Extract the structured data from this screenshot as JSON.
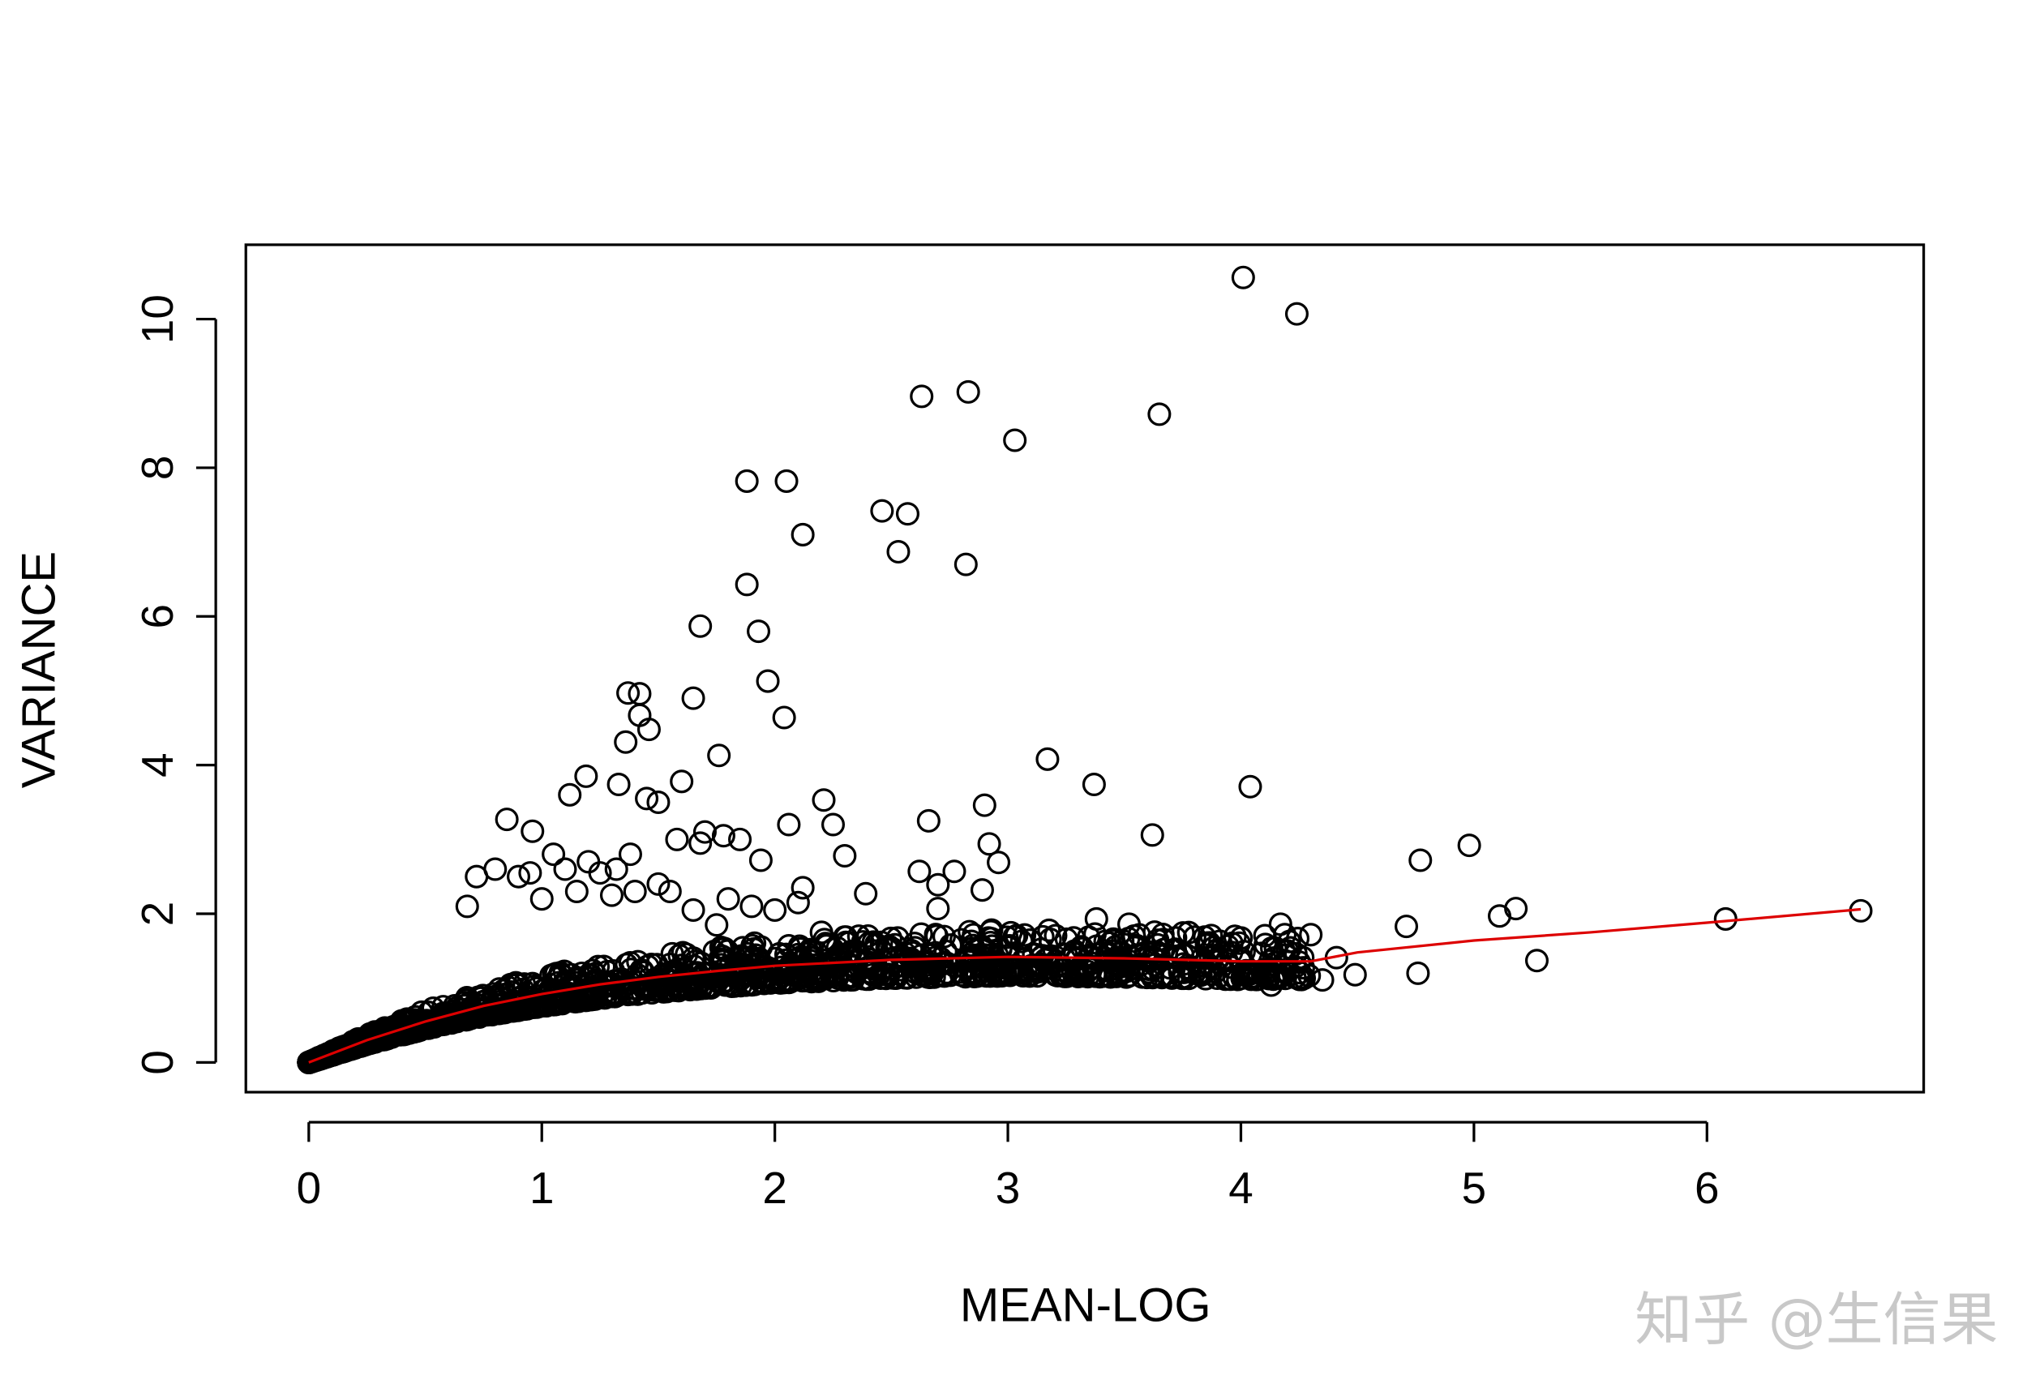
{
  "chart_data": {
    "type": "scatter",
    "title": "",
    "xlabel": "MEAN-LOG",
    "ylabel": "VARIANCE",
    "xlim": [
      -0.27,
      6.93
    ],
    "ylim": [
      -0.4,
      11.0
    ],
    "xticks": [
      "0",
      "1",
      "2",
      "3",
      "4",
      "5",
      "6"
    ],
    "yticks": [
      "0",
      "2",
      "4",
      "6",
      "8",
      "10"
    ],
    "grid": false,
    "point_color": "#000000",
    "fit_color": "#dd0000",
    "points": [
      [
        4.01,
        10.56
      ],
      [
        4.24,
        10.07
      ],
      [
        2.63,
        8.96
      ],
      [
        2.83,
        9.02
      ],
      [
        3.65,
        8.72
      ],
      [
        3.03,
        8.37
      ],
      [
        1.88,
        7.82
      ],
      [
        2.05,
        7.82
      ],
      [
        2.12,
        7.1
      ],
      [
        2.46,
        7.42
      ],
      [
        2.57,
        7.38
      ],
      [
        2.53,
        6.87
      ],
      [
        2.82,
        6.7
      ],
      [
        1.88,
        6.43
      ],
      [
        1.68,
        5.87
      ],
      [
        1.93,
        5.8
      ],
      [
        1.97,
        5.13
      ],
      [
        2.04,
        4.64
      ],
      [
        1.65,
        4.9
      ],
      [
        1.37,
        4.97
      ],
      [
        1.42,
        4.96
      ],
      [
        1.42,
        4.67
      ],
      [
        1.46,
        4.48
      ],
      [
        1.36,
        4.31
      ],
      [
        1.76,
        4.13
      ],
      [
        3.17,
        4.08
      ],
      [
        3.37,
        3.74
      ],
      [
        4.04,
        3.71
      ],
      [
        1.19,
        3.85
      ],
      [
        1.12,
        3.6
      ],
      [
        1.33,
        3.74
      ],
      [
        1.6,
        3.78
      ],
      [
        2.9,
        3.46
      ],
      [
        2.21,
        3.53
      ],
      [
        0.85,
        3.27
      ],
      [
        0.96,
        3.11
      ],
      [
        2.66,
        3.25
      ],
      [
        2.06,
        3.2
      ],
      [
        2.25,
        3.2
      ],
      [
        3.62,
        3.06
      ],
      [
        4.98,
        2.92
      ],
      [
        2.92,
        2.94
      ],
      [
        4.77,
        2.72
      ],
      [
        2.96,
        2.69
      ],
      [
        1.94,
        2.72
      ],
      [
        2.3,
        2.78
      ],
      [
        2.62,
        2.57
      ],
      [
        2.77,
        2.57
      ],
      [
        2.7,
        2.39
      ],
      [
        2.89,
        2.32
      ],
      [
        2.39,
        2.27
      ],
      [
        2.7,
        2.07
      ],
      [
        5.18,
        2.07
      ],
      [
        5.11,
        1.97
      ],
      [
        6.66,
        2.04
      ],
      [
        6.08,
        1.93
      ],
      [
        4.71,
        1.83
      ],
      [
        4.17,
        1.86
      ],
      [
        5.27,
        1.37
      ],
      [
        4.76,
        1.2
      ],
      [
        4.49,
        1.18
      ],
      [
        4.35,
        1.11
      ],
      [
        4.13,
        1.04
      ],
      [
        4.41,
        1.41
      ],
      [
        3.38,
        1.93
      ],
      [
        3.52,
        1.86
      ],
      [
        3.15,
        1.69
      ],
      [
        3.91,
        1.63
      ],
      [
        1.45,
        3.55
      ],
      [
        1.5,
        3.5
      ],
      [
        1.58,
        3.0
      ],
      [
        1.7,
        3.1
      ],
      [
        1.78,
        3.05
      ],
      [
        1.85,
        3.0
      ],
      [
        1.68,
        2.95
      ],
      [
        1.1,
        2.6
      ],
      [
        1.25,
        2.55
      ],
      [
        0.95,
        2.55
      ],
      [
        0.72,
        2.5
      ],
      [
        0.8,
        2.6
      ],
      [
        0.9,
        2.5
      ],
      [
        1.05,
        2.8
      ],
      [
        1.2,
        2.7
      ],
      [
        1.32,
        2.6
      ],
      [
        1.38,
        2.8
      ],
      [
        1.5,
        2.4
      ],
      [
        1.55,
        2.3
      ],
      [
        1.8,
        2.2
      ],
      [
        1.9,
        2.1
      ],
      [
        2.0,
        2.05
      ],
      [
        2.1,
        2.15
      ],
      [
        2.12,
        2.35
      ],
      [
        0.68,
        2.1
      ],
      [
        1.0,
        2.2
      ],
      [
        1.15,
        2.3
      ],
      [
        1.3,
        2.25
      ],
      [
        1.4,
        2.3
      ],
      [
        1.65,
        2.05
      ],
      [
        1.75,
        1.85
      ],
      [
        2.2,
        1.75
      ],
      [
        2.4,
        1.7
      ],
      [
        2.6,
        1.6
      ],
      [
        2.8,
        1.65
      ],
      [
        3.0,
        1.55
      ],
      [
        3.25,
        1.45
      ],
      [
        3.45,
        1.5
      ],
      [
        3.6,
        1.4
      ],
      [
        3.75,
        1.45
      ],
      [
        3.85,
        1.35
      ],
      [
        4.0,
        1.4
      ],
      [
        4.1,
        1.25
      ],
      [
        4.2,
        1.5
      ],
      [
        4.25,
        1.35
      ],
      [
        4.05,
        1.2
      ],
      [
        3.8,
        1.2
      ],
      [
        3.3,
        1.25
      ],
      [
        2.85,
        1.22
      ],
      [
        2.95,
        1.3
      ],
      [
        3.1,
        1.3
      ],
      [
        2.55,
        1.3
      ]
    ],
    "cloud": {
      "n": 1400,
      "x_range": [
        0,
        4.3
      ],
      "seed": 7
    },
    "fit": [
      [
        0,
        0
      ],
      [
        0.25,
        0.3
      ],
      [
        0.5,
        0.55
      ],
      [
        0.75,
        0.76
      ],
      [
        1,
        0.92
      ],
      [
        1.25,
        1.05
      ],
      [
        1.5,
        1.15
      ],
      [
        1.75,
        1.23
      ],
      [
        2,
        1.3
      ],
      [
        2.5,
        1.38
      ],
      [
        3,
        1.42
      ],
      [
        3.5,
        1.4
      ],
      [
        4,
        1.36
      ],
      [
        4.3,
        1.36
      ],
      [
        4.5,
        1.48
      ],
      [
        5,
        1.64
      ],
      [
        5.5,
        1.75
      ],
      [
        6,
        1.88
      ],
      [
        6.66,
        2.06
      ]
    ]
  },
  "watermark": "知乎 @生信果"
}
